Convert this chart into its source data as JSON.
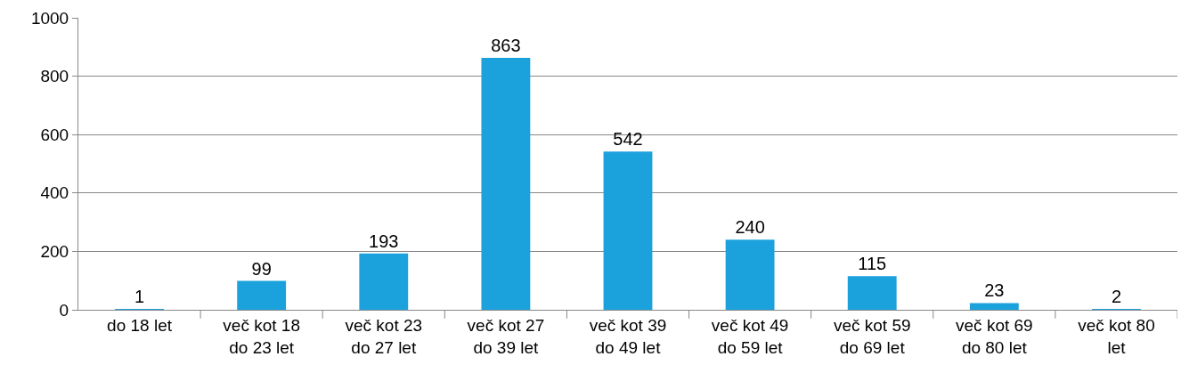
{
  "chart_data": {
    "type": "bar",
    "categories": [
      "do 18 let",
      "več kot 18\ndo 23 let",
      "več kot 23\ndo 27 let",
      "več kot 27\ndo 39 let",
      "več kot 39\ndo 49 let",
      "več kot 49\ndo 59 let",
      "več kot 59\ndo 69 let",
      "več kot 69\ndo 80 let",
      "več kot 80\nlet"
    ],
    "values": [
      1,
      99,
      193,
      863,
      542,
      240,
      115,
      23,
      2
    ],
    "color": "#1ba1dc",
    "ylim": [
      0,
      1000
    ],
    "yticks": [
      0,
      200,
      400,
      600,
      800,
      1000
    ],
    "grid": "y",
    "data_labels": true
  }
}
